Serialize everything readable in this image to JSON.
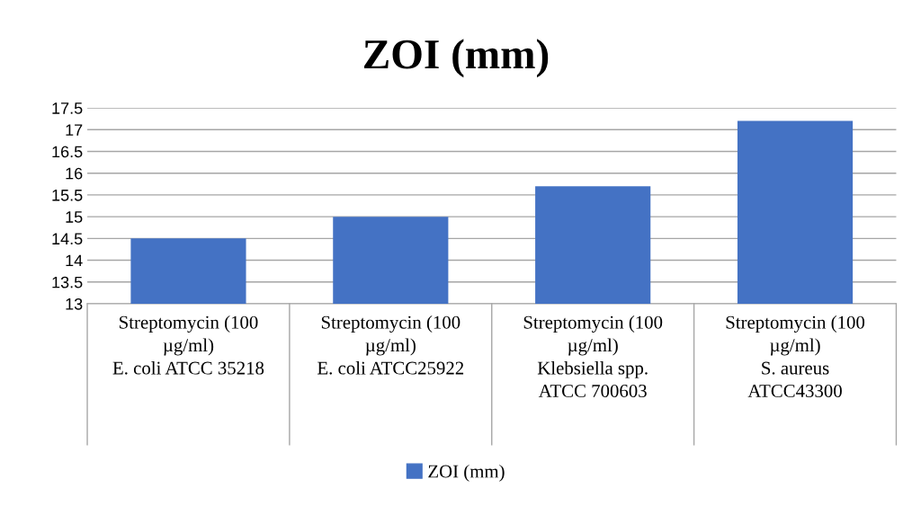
{
  "chart_data": {
    "type": "bar",
    "title": "ZOI (mm)",
    "categories": [
      "Streptomycin (100\nµg/ml)\nE. coli ATCC 35218",
      "Streptomycin (100\nµg/ml)\nE. coli ATCC25922",
      "Streptomycin (100\nµg/ml)\nKlebsiella spp.\nATCC 700603",
      "Streptomycin (100\nµg/ml)\nS. aureus\nATCC43300"
    ],
    "series": [
      {
        "name": "ZOI (mm)",
        "color": "#4472c4",
        "values": [
          14.5,
          15.0,
          15.7,
          17.2
        ]
      }
    ],
    "ylim": [
      13,
      17.5
    ],
    "yticks": [
      13,
      13.5,
      14,
      14.5,
      15,
      15.5,
      16,
      16.5,
      17,
      17.5
    ],
    "grid": "y",
    "legend": "bottom"
  }
}
